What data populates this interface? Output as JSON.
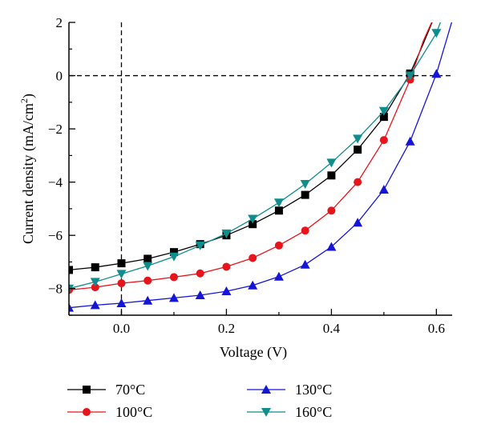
{
  "chart_data": {
    "type": "line",
    "xlabel": "Voltage (V)",
    "ylabel_parts": [
      "Current density (mA/cm",
      "2",
      ")"
    ],
    "xlim": [
      -0.1,
      0.63
    ],
    "ylim": [
      -9,
      2
    ],
    "xticks": [
      0.0,
      0.2,
      0.4,
      0.6
    ],
    "xtick_labels": [
      "0.0",
      "0.2",
      "0.4",
      "0.6"
    ],
    "yticks": [
      -8,
      -6,
      -4,
      -2,
      0,
      2
    ],
    "ytick_labels": [
      "−8",
      "−6",
      "−4",
      "−2",
      "0",
      "2"
    ],
    "grid": false,
    "reference_lines": {
      "x": 0,
      "y": 0,
      "style": "dashed"
    },
    "legend_position": "bottom",
    "x": [
      -0.1,
      -0.05,
      0.0,
      0.05,
      0.1,
      0.15,
      0.2,
      0.25,
      0.3,
      0.35,
      0.4,
      0.45,
      0.5,
      0.55,
      0.6
    ],
    "series": [
      {
        "name": "70°C",
        "marker": "square",
        "color": "#000000",
        "values": [
          -7.3,
          -7.2,
          -7.05,
          -6.88,
          -6.63,
          -6.33,
          -6.0,
          -5.58,
          -5.07,
          -4.48,
          -3.75,
          -2.78,
          -1.55,
          0.08,
          null
        ],
        "tail": [
          [
            0.55,
            0.08
          ],
          [
            0.575,
            1.2
          ],
          [
            0.6,
            2.4
          ]
        ]
      },
      {
        "name": "100°C",
        "marker": "circle",
        "color": "#e8141c",
        "values": [
          -8.05,
          -7.95,
          -7.8,
          -7.7,
          -7.57,
          -7.43,
          -7.18,
          -6.85,
          -6.38,
          -5.82,
          -5.07,
          -4.0,
          -2.42,
          -0.15,
          null
        ],
        "tail": [
          [
            0.55,
            -0.15
          ],
          [
            0.575,
            1.3
          ],
          [
            0.6,
            2.4
          ]
        ]
      },
      {
        "name": "130°C",
        "marker": "triangle-up",
        "color": "#1515d6",
        "values": [
          -8.72,
          -8.62,
          -8.55,
          -8.45,
          -8.35,
          -8.25,
          -8.1,
          -7.88,
          -7.55,
          -7.1,
          -6.43,
          -5.52,
          -4.28,
          -2.47,
          0.07
        ],
        "tail": [
          [
            0.6,
            0.07
          ],
          [
            0.62,
            1.4
          ],
          [
            0.635,
            2.4
          ]
        ]
      },
      {
        "name": "160°C",
        "marker": "triangle-down",
        "color": "#0f8c8c",
        "values": [
          -8.0,
          -7.75,
          -7.45,
          -7.15,
          -6.8,
          -6.38,
          -5.93,
          -5.38,
          -4.77,
          -4.07,
          -3.27,
          -2.37,
          -1.33,
          0.0,
          1.6
        ],
        "tail": [
          [
            0.6,
            1.6
          ],
          [
            0.615,
            2.4
          ]
        ]
      }
    ]
  }
}
